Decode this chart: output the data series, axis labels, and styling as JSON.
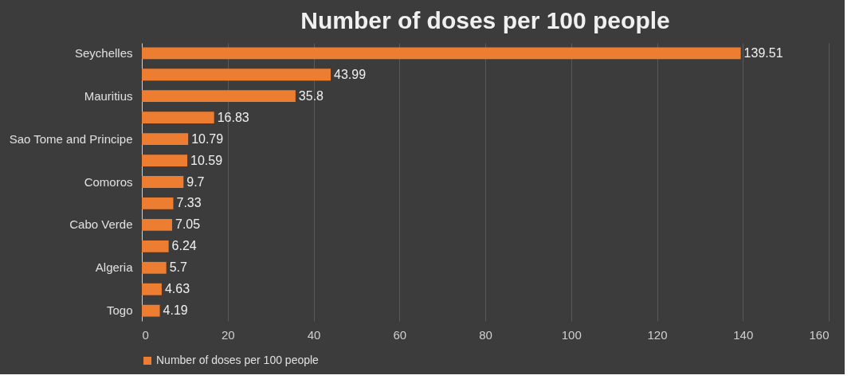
{
  "chart_data": {
    "type": "bar",
    "orientation": "horizontal",
    "title": "Number of doses per 100 people",
    "categories": [
      "Seychelles",
      null,
      "Mauritius",
      null,
      "Sao Tome and Principe",
      null,
      "Comoros",
      null,
      "Cabo Verde",
      null,
      "Algeria",
      null,
      "Togo"
    ],
    "series": [
      {
        "name": "Number of doses per 100 people",
        "color": "#ed7d31",
        "values": [
          139.51,
          43.99,
          35.8,
          16.83,
          10.79,
          10.59,
          9.7,
          7.33,
          7.05,
          6.24,
          5.7,
          4.63,
          4.19
        ]
      }
    ],
    "xlim": [
      0,
      160
    ],
    "xticks": [
      0,
      20,
      40,
      60,
      80,
      100,
      120,
      140,
      160
    ],
    "grid": "x",
    "legend": "bottom",
    "data_labels": true
  }
}
